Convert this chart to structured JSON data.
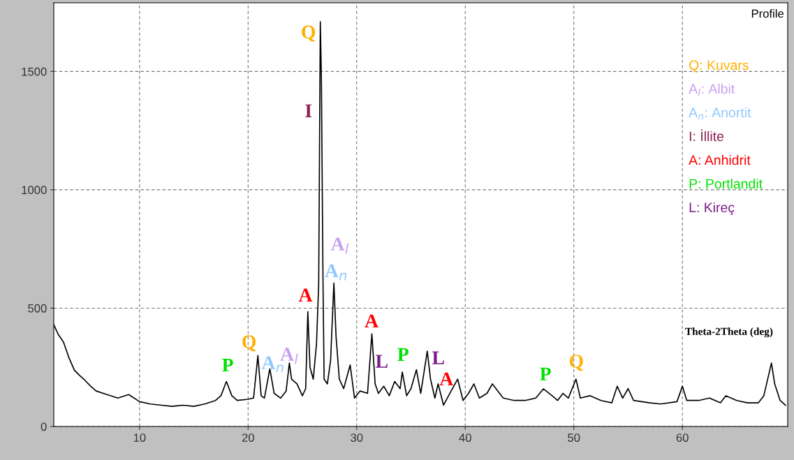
{
  "chart_data": {
    "type": "line",
    "series": [
      {
        "color": "#000000",
        "x": [
          2.1,
          2.5,
          3,
          3.5,
          4,
          4.5,
          5,
          5.5,
          6,
          7,
          8,
          9,
          10,
          11,
          12,
          13,
          14,
          15,
          16,
          17,
          17.5,
          18,
          18.5,
          19,
          20,
          20.5,
          20.9,
          21.2,
          21.5,
          22,
          22.4,
          23,
          23.5,
          23.8,
          24,
          24.5,
          25,
          25.3,
          25.5,
          25.7,
          26,
          26.3,
          26.5,
          26.65,
          26.75,
          26.9,
          27,
          27.3,
          27.6,
          27.9,
          28.1,
          28.4,
          28.8,
          29.4,
          29.8,
          30.3,
          31,
          31.4,
          31.7,
          32,
          32.5,
          33,
          33.5,
          34,
          34.2,
          34.6,
          35,
          35.5,
          35.9,
          36.5,
          36.8,
          37.2,
          37.5,
          38,
          38.7,
          39.3,
          39.8,
          40.3,
          40.8,
          41.3,
          42,
          42.5,
          43,
          43.5,
          44.5,
          45.5,
          46.5,
          47.2,
          48,
          48.5,
          49,
          49.5,
          50.2,
          50.6,
          51.5,
          52.5,
          53.5,
          54,
          54.5,
          55,
          55.5,
          57,
          58,
          59.5,
          60,
          60.4,
          61.5,
          62.5,
          63.5,
          64,
          65,
          66,
          67,
          67.5,
          68.2,
          68.5,
          69,
          69.5
        ],
        "values": [
          430,
          390,
          356,
          290,
          238,
          215,
          194,
          170,
          150,
          135,
          120,
          135,
          105,
          95,
          90,
          85,
          90,
          85,
          95,
          110,
          130,
          190,
          130,
          110,
          115,
          120,
          300,
          130,
          120,
          244,
          140,
          120,
          150,
          268,
          200,
          180,
          130,
          160,
          485,
          250,
          200,
          350,
          600,
          1710,
          1470,
          600,
          200,
          180,
          280,
          606,
          380,
          200,
          160,
          260,
          120,
          150,
          140,
          391,
          180,
          140,
          170,
          130,
          190,
          160,
          230,
          130,
          160,
          240,
          140,
          318,
          200,
          120,
          180,
          90,
          150,
          200,
          110,
          140,
          180,
          120,
          140,
          180,
          150,
          120,
          110,
          110,
          120,
          159,
          130,
          110,
          140,
          120,
          200,
          120,
          130,
          110,
          100,
          170,
          120,
          160,
          110,
          100,
          95,
          105,
          170,
          110,
          110,
          120,
          100,
          130,
          110,
          100,
          100,
          130,
          268,
          180,
          110,
          90
        ]
      }
    ],
    "xlim": [
      2.1,
      69.7
    ],
    "ylim": [
      0,
      1790
    ],
    "xticks": [
      10,
      20,
      30,
      40,
      50,
      60
    ],
    "yticks": [
      0,
      500,
      1000,
      1500
    ],
    "grid": true,
    "line_style": "solid",
    "marker": "none",
    "annotations": [
      "Q",
      "I",
      "A$_{l}$",
      "A$_{n}$",
      "A",
      "Q",
      "A$_{n}$",
      "A$_{l}$",
      "P",
      "A",
      "L",
      "P",
      "L",
      "A",
      "P",
      "Q",
      "Theta-2Theta (deg)",
      "Profile",
      "Q: Kuvars",
      "A$_{l}$: Albit",
      "A$_{n}$: Anortit",
      "I: İllite",
      "A: Anhidrit",
      "P: Portlandit",
      "L: Kireç"
    ]
  }
}
